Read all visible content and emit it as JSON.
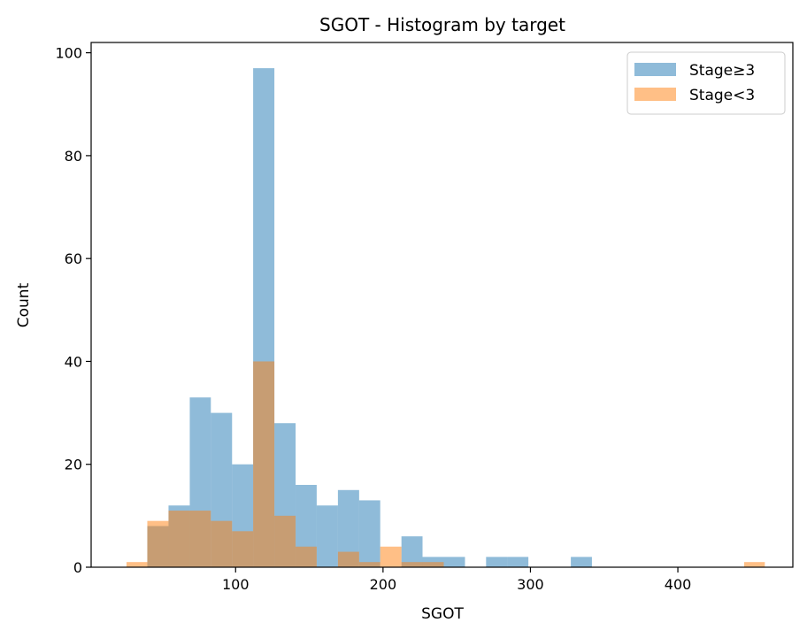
{
  "chart_data": {
    "type": "bar",
    "title": "SGOT - Histogram by target",
    "xlabel": "SGOT",
    "ylabel": "Count",
    "xlim": [
      2,
      478
    ],
    "ylim": [
      0,
      102
    ],
    "xticks": [
      100,
      200,
      300,
      400
    ],
    "yticks": [
      0,
      20,
      40,
      60,
      80,
      100
    ],
    "grid": false,
    "legend_position": "top-right",
    "series": [
      {
        "name": "Stage≥3",
        "color": "#1f77b4",
        "opacity": 0.5,
        "bins": [
          {
            "x0": 40.1,
            "x1": 54.5,
            "count": 8
          },
          {
            "x0": 54.5,
            "x1": 68.9,
            "count": 12
          },
          {
            "x0": 68.9,
            "x1": 83.2,
            "count": 33
          },
          {
            "x0": 83.2,
            "x1": 97.6,
            "count": 30
          },
          {
            "x0": 97.6,
            "x1": 111.9,
            "count": 20
          },
          {
            "x0": 111.9,
            "x1": 126.3,
            "count": 97
          },
          {
            "x0": 126.3,
            "x1": 140.7,
            "count": 28
          },
          {
            "x0": 140.7,
            "x1": 155.0,
            "count": 16
          },
          {
            "x0": 155.0,
            "x1": 169.4,
            "count": 12
          },
          {
            "x0": 169.4,
            "x1": 183.8,
            "count": 15
          },
          {
            "x0": 183.8,
            "x1": 198.1,
            "count": 13
          },
          {
            "x0": 212.5,
            "x1": 226.8,
            "count": 6
          },
          {
            "x0": 226.8,
            "x1": 241.2,
            "count": 2
          },
          {
            "x0": 241.2,
            "x1": 255.6,
            "count": 2
          },
          {
            "x0": 269.9,
            "x1": 284.3,
            "count": 2
          },
          {
            "x0": 284.3,
            "x1": 298.6,
            "count": 2
          },
          {
            "x0": 327.4,
            "x1": 341.7,
            "count": 2
          }
        ]
      },
      {
        "name": "Stage<3",
        "color": "#ff7f0e",
        "opacity": 0.5,
        "bins": [
          {
            "x0": 26.0,
            "x1": 40.1,
            "count": 1
          },
          {
            "x0": 40.1,
            "x1": 54.5,
            "count": 9
          },
          {
            "x0": 54.5,
            "x1": 68.9,
            "count": 11
          },
          {
            "x0": 68.9,
            "x1": 83.2,
            "count": 11
          },
          {
            "x0": 83.2,
            "x1": 97.6,
            "count": 9
          },
          {
            "x0": 97.6,
            "x1": 111.9,
            "count": 7
          },
          {
            "x0": 111.9,
            "x1": 126.3,
            "count": 40
          },
          {
            "x0": 126.3,
            "x1": 140.7,
            "count": 10
          },
          {
            "x0": 140.7,
            "x1": 155.0,
            "count": 4
          },
          {
            "x0": 169.4,
            "x1": 183.8,
            "count": 3
          },
          {
            "x0": 183.8,
            "x1": 198.1,
            "count": 1
          },
          {
            "x0": 198.1,
            "x1": 212.5,
            "count": 4
          },
          {
            "x0": 212.5,
            "x1": 226.8,
            "count": 1
          },
          {
            "x0": 226.8,
            "x1": 241.2,
            "count": 1
          },
          {
            "x0": 445.0,
            "x1": 459.0,
            "count": 1
          }
        ]
      }
    ]
  }
}
